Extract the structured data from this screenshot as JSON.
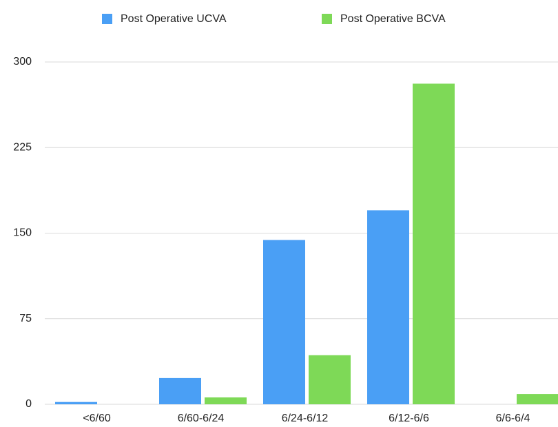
{
  "chart_data": {
    "type": "bar",
    "categories": [
      "<6/60",
      "6/60-6/24",
      "6/24-6/12",
      "6/12-6/6",
      "6/6-6/4"
    ],
    "series": [
      {
        "name": "Post Operative UCVA",
        "color": "#4a9ff5",
        "values": [
          2,
          23,
          144,
          170,
          0
        ]
      },
      {
        "name": "Post Operative BCVA",
        "color": "#7ed957",
        "values": [
          0,
          6,
          43,
          281,
          9
        ]
      }
    ],
    "ylim": [
      0,
      300
    ],
    "yticks": [
      0,
      75,
      150,
      225,
      300
    ],
    "grid": true,
    "legend": "top"
  }
}
